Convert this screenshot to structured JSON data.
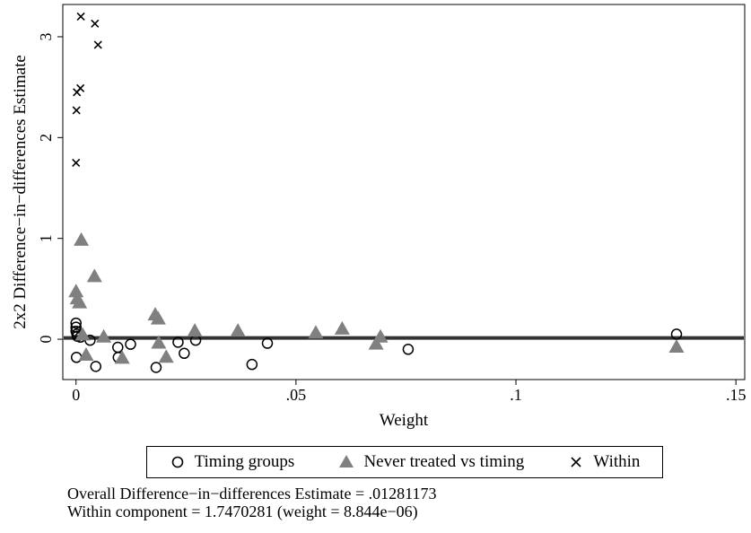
{
  "chart_data": {
    "type": "scatter",
    "xlabel": "Weight",
    "ylabel": "2x2 Difference−in−differences Estimate",
    "xlim": [
      -0.003,
      0.152
    ],
    "ylim": [
      -0.4,
      3.32
    ],
    "x_ticks": [
      0,
      0.05,
      0.1,
      0.15
    ],
    "x_tick_labels": [
      "0",
      ".05",
      ".1",
      ".15"
    ],
    "y_ticks": [
      0,
      1,
      2,
      3
    ],
    "y_tick_labels": [
      "0",
      "1",
      "2",
      "3"
    ],
    "reference_line_y": 0.0128,
    "grid": false,
    "legend_position": "bottom",
    "series": [
      {
        "name": "Timing groups",
        "marker": "circle",
        "color": "#000000",
        "points": [
          {
            "x": 0.0,
            "y": 0.16
          },
          {
            "x": 0.0,
            "y": 0.12
          },
          {
            "x": 0.0,
            "y": 0.08
          },
          {
            "x": 0.0002,
            "y": 0.05
          },
          {
            "x": 0.0003,
            "y": 0.03
          },
          {
            "x": 0.0001,
            "y": -0.18
          },
          {
            "x": 0.001,
            "y": 0.02
          },
          {
            "x": 0.0032,
            "y": -0.01
          },
          {
            "x": 0.0045,
            "y": -0.27
          },
          {
            "x": 0.0095,
            "y": -0.08
          },
          {
            "x": 0.0096,
            "y": -0.18
          },
          {
            "x": 0.0124,
            "y": -0.05
          },
          {
            "x": 0.0182,
            "y": -0.28
          },
          {
            "x": 0.0232,
            "y": -0.03
          },
          {
            "x": 0.0246,
            "y": -0.14
          },
          {
            "x": 0.0272,
            "y": -0.01
          },
          {
            "x": 0.04,
            "y": -0.25
          },
          {
            "x": 0.0435,
            "y": -0.04
          },
          {
            "x": 0.0755,
            "y": -0.1
          },
          {
            "x": 0.1365,
            "y": 0.05
          }
        ]
      },
      {
        "name": "Never treated vs timing",
        "marker": "triangle",
        "color": "#808080",
        "points": [
          {
            "x": 0.0,
            "y": 0.47
          },
          {
            "x": 0.0003,
            "y": 0.4
          },
          {
            "x": 0.0008,
            "y": 0.36
          },
          {
            "x": 0.0012,
            "y": 0.98
          },
          {
            "x": 0.0015,
            "y": 0.04
          },
          {
            "x": 0.0023,
            "y": -0.16
          },
          {
            "x": 0.0042,
            "y": 0.62
          },
          {
            "x": 0.0063,
            "y": 0.02
          },
          {
            "x": 0.0105,
            "y": -0.19
          },
          {
            "x": 0.018,
            "y": 0.24
          },
          {
            "x": 0.0187,
            "y": 0.2
          },
          {
            "x": 0.0188,
            "y": -0.04
          },
          {
            "x": 0.0205,
            "y": -0.18
          },
          {
            "x": 0.027,
            "y": 0.08
          },
          {
            "x": 0.0368,
            "y": 0.08
          },
          {
            "x": 0.0545,
            "y": 0.06
          },
          {
            "x": 0.0605,
            "y": 0.1
          },
          {
            "x": 0.0682,
            "y": -0.05
          },
          {
            "x": 0.0692,
            "y": 0.02
          },
          {
            "x": 0.1365,
            "y": -0.08
          }
        ]
      },
      {
        "name": "Within",
        "marker": "x",
        "color": "#000000",
        "points": [
          {
            "x": 0.0,
            "y": 1.75
          },
          {
            "x": 0.0001,
            "y": 2.27
          },
          {
            "x": 0.0002,
            "y": 2.45
          },
          {
            "x": 0.001,
            "y": 2.49
          },
          {
            "x": 0.0011,
            "y": 3.2
          },
          {
            "x": 0.0043,
            "y": 3.13
          },
          {
            "x": 0.005,
            "y": 2.92
          }
        ]
      }
    ],
    "notes": [
      "Overall Difference−in−differences Estimate = .01281173",
      "Within component = 1.7470281 (weight = 8.844e−06)"
    ]
  }
}
